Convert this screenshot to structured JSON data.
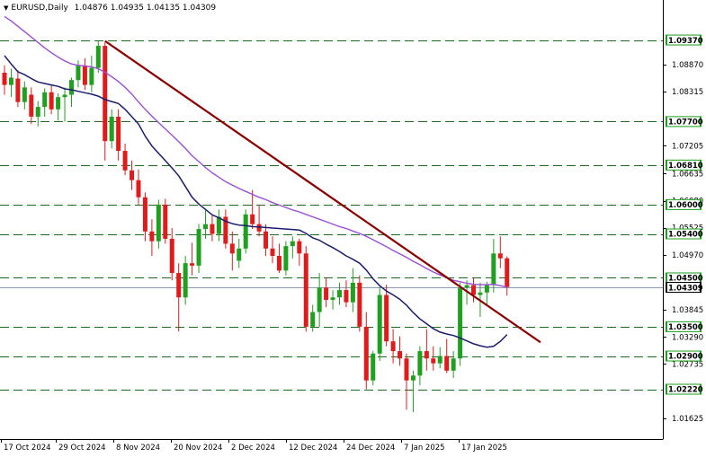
{
  "header": {
    "symbol": "EURUSD,Daily",
    "ohlc": "1.04876 1.04935 1.04135 1.04309"
  },
  "colors": {
    "bull": "#1fa01f",
    "bear": "#e01b1b",
    "ma_fast": "#1c1c6e",
    "ma_slow": "#9b4fd6",
    "trendline": "#8b0000",
    "level": "#1d6b1d",
    "level_label_bg": "#18a018",
    "price_line": "#8a9cb5",
    "current_label_bg": "#000000"
  },
  "chart_data": {
    "type": "candlestick",
    "ylim": [
      1.012,
      1.0995
    ],
    "y_ticks": [
      "1.08870",
      "1.08315",
      "1.07205",
      "1.06635",
      "1.06080",
      "1.05525",
      "1.04970",
      "1.03845",
      "1.03290",
      "1.02735",
      "1.01625"
    ],
    "x_ticks": [
      "17 Oct 2024",
      "29 Oct 2024",
      "8 Nov 2024",
      "20 Nov 2024",
      "2 Dec 2024",
      "12 Dec 2024",
      "24 Dec 2024",
      "7 Jan 2025",
      "17 Jan 2025"
    ],
    "levels": [
      "1.09370",
      "1.07700",
      "1.06810",
      "1.06000",
      "1.05400",
      "1.04500",
      "1.03500",
      "1.02900",
      "1.02220"
    ],
    "current_price": "1.04309",
    "candles": [
      {
        "o": 1.087,
        "h": 1.0885,
        "l": 1.0825,
        "c": 1.0845
      },
      {
        "o": 1.0845,
        "h": 1.0878,
        "l": 1.082,
        "c": 1.086
      },
      {
        "o": 1.0858,
        "h": 1.0875,
        "l": 1.08,
        "c": 1.081
      },
      {
        "o": 1.081,
        "h": 1.0852,
        "l": 1.0795,
        "c": 1.084
      },
      {
        "o": 1.0825,
        "h": 1.084,
        "l": 1.0765,
        "c": 1.078
      },
      {
        "o": 1.078,
        "h": 1.0812,
        "l": 1.076,
        "c": 1.08
      },
      {
        "o": 1.08,
        "h": 1.0838,
        "l": 1.078,
        "c": 1.083
      },
      {
        "o": 1.083,
        "h": 1.0845,
        "l": 1.0785,
        "c": 1.0795
      },
      {
        "o": 1.0795,
        "h": 1.0828,
        "l": 1.0772,
        "c": 1.082
      },
      {
        "o": 1.082,
        "h": 1.084,
        "l": 1.077,
        "c": 1.0825
      },
      {
        "o": 1.0825,
        "h": 1.086,
        "l": 1.08,
        "c": 1.0855
      },
      {
        "o": 1.0855,
        "h": 1.0895,
        "l": 1.084,
        "c": 1.0885
      },
      {
        "o": 1.0885,
        "h": 1.09,
        "l": 1.0835,
        "c": 1.0845
      },
      {
        "o": 1.0845,
        "h": 1.0905,
        "l": 1.083,
        "c": 1.088
      },
      {
        "o": 1.088,
        "h": 1.0935,
        "l": 1.087,
        "c": 1.0925
      },
      {
        "o": 1.0925,
        "h": 1.0932,
        "l": 1.069,
        "c": 1.073
      },
      {
        "o": 1.073,
        "h": 1.0795,
        "l": 1.0715,
        "c": 1.078
      },
      {
        "o": 1.078,
        "h": 1.0795,
        "l": 1.069,
        "c": 1.071
      },
      {
        "o": 1.071,
        "h": 1.0725,
        "l": 1.066,
        "c": 1.067
      },
      {
        "o": 1.067,
        "h": 1.069,
        "l": 1.063,
        "c": 1.065
      },
      {
        "o": 1.065,
        "h": 1.0672,
        "l": 1.06,
        "c": 1.0615
      },
      {
        "o": 1.0615,
        "h": 1.0625,
        "l": 1.0525,
        "c": 1.0545
      },
      {
        "o": 1.0545,
        "h": 1.057,
        "l": 1.0495,
        "c": 1.0525
      },
      {
        "o": 1.0525,
        "h": 1.061,
        "l": 1.051,
        "c": 1.06
      },
      {
        "o": 1.06,
        "h": 1.0612,
        "l": 1.052,
        "c": 1.053
      },
      {
        "o": 1.053,
        "h": 1.0552,
        "l": 1.0445,
        "c": 1.046
      },
      {
        "o": 1.046,
        "h": 1.048,
        "l": 1.034,
        "c": 1.041
      },
      {
        "o": 1.041,
        "h": 1.0495,
        "l": 1.0395,
        "c": 1.048
      },
      {
        "o": 1.048,
        "h": 1.0522,
        "l": 1.0455,
        "c": 1.0475
      },
      {
        "o": 1.0475,
        "h": 1.056,
        "l": 1.046,
        "c": 1.055
      },
      {
        "o": 1.055,
        "h": 1.0588,
        "l": 1.053,
        "c": 1.056
      },
      {
        "o": 1.056,
        "h": 1.0578,
        "l": 1.0525,
        "c": 1.054
      },
      {
        "o": 1.054,
        "h": 1.059,
        "l": 1.0525,
        "c": 1.0575
      },
      {
        "o": 1.0575,
        "h": 1.059,
        "l": 1.051,
        "c": 1.052
      },
      {
        "o": 1.052,
        "h": 1.0545,
        "l": 1.0465,
        "c": 1.05
      },
      {
        "o": 1.0485,
        "h": 1.053,
        "l": 1.047,
        "c": 1.051
      },
      {
        "o": 1.051,
        "h": 1.059,
        "l": 1.05,
        "c": 1.058
      },
      {
        "o": 1.058,
        "h": 1.063,
        "l": 1.055,
        "c": 1.056
      },
      {
        "o": 1.056,
        "h": 1.06,
        "l": 1.0535,
        "c": 1.0545
      },
      {
        "o": 1.0545,
        "h": 1.056,
        "l": 1.0495,
        "c": 1.051
      },
      {
        "o": 1.051,
        "h": 1.0535,
        "l": 1.048,
        "c": 1.0495
      },
      {
        "o": 1.0495,
        "h": 1.052,
        "l": 1.046,
        "c": 1.0465
      },
      {
        "o": 1.0465,
        "h": 1.0525,
        "l": 1.0455,
        "c": 1.0515
      },
      {
        "o": 1.0515,
        "h": 1.0535,
        "l": 1.049,
        "c": 1.0525
      },
      {
        "o": 1.0525,
        "h": 1.053,
        "l": 1.0475,
        "c": 1.05
      },
      {
        "o": 1.05,
        "h": 1.0515,
        "l": 1.034,
        "c": 1.035
      },
      {
        "o": 1.035,
        "h": 1.0395,
        "l": 1.034,
        "c": 1.038
      },
      {
        "o": 1.038,
        "h": 1.046,
        "l": 1.035,
        "c": 1.043
      },
      {
        "o": 1.043,
        "h": 1.045,
        "l": 1.039,
        "c": 1.0405
      },
      {
        "o": 1.0405,
        "h": 1.0425,
        "l": 1.0385,
        "c": 1.041
      },
      {
        "o": 1.041,
        "h": 1.044,
        "l": 1.0395,
        "c": 1.0425
      },
      {
        "o": 1.0425,
        "h": 1.0445,
        "l": 1.039,
        "c": 1.04
      },
      {
        "o": 1.04,
        "h": 1.047,
        "l": 1.038,
        "c": 1.044
      },
      {
        "o": 1.044,
        "h": 1.0455,
        "l": 1.034,
        "c": 1.035
      },
      {
        "o": 1.035,
        "h": 1.038,
        "l": 1.0222,
        "c": 1.024
      },
      {
        "o": 1.024,
        "h": 1.03,
        "l": 1.023,
        "c": 1.0295
      },
      {
        "o": 1.0295,
        "h": 1.0432,
        "l": 1.028,
        "c": 1.0415
      },
      {
        "o": 1.0415,
        "h": 1.0436,
        "l": 1.031,
        "c": 1.032
      },
      {
        "o": 1.032,
        "h": 1.0345,
        "l": 1.0275,
        "c": 1.03
      },
      {
        "o": 1.03,
        "h": 1.033,
        "l": 1.027,
        "c": 1.0285
      },
      {
        "o": 1.0285,
        "h": 1.0295,
        "l": 1.018,
        "c": 1.024
      },
      {
        "o": 1.024,
        "h": 1.026,
        "l": 1.0175,
        "c": 1.025
      },
      {
        "o": 1.025,
        "h": 1.031,
        "l": 1.023,
        "c": 1.03
      },
      {
        "o": 1.03,
        "h": 1.0345,
        "l": 1.026,
        "c": 1.0285
      },
      {
        "o": 1.0285,
        "h": 1.031,
        "l": 1.026,
        "c": 1.0275
      },
      {
        "o": 1.0275,
        "h": 1.0308,
        "l": 1.0265,
        "c": 1.029
      },
      {
        "o": 1.029,
        "h": 1.0325,
        "l": 1.0255,
        "c": 1.026
      },
      {
        "o": 1.026,
        "h": 1.03,
        "l": 1.0245,
        "c": 1.0285
      },
      {
        "o": 1.0285,
        "h": 1.044,
        "l": 1.027,
        "c": 1.043
      },
      {
        "o": 1.043,
        "h": 1.0445,
        "l": 1.0395,
        "c": 1.0435
      },
      {
        "o": 1.0435,
        "h": 1.045,
        "l": 1.04,
        "c": 1.0415
      },
      {
        "o": 1.0415,
        "h": 1.044,
        "l": 1.037,
        "c": 1.042
      },
      {
        "o": 1.042,
        "h": 1.0442,
        "l": 1.0395,
        "c": 1.0435
      },
      {
        "o": 1.0435,
        "h": 1.053,
        "l": 1.042,
        "c": 1.05
      },
      {
        "o": 1.05,
        "h": 1.0535,
        "l": 1.047,
        "c": 1.049
      },
      {
        "o": 1.049,
        "h": 1.0494,
        "l": 1.0414,
        "c": 1.0431
      }
    ],
    "ma_fast": [
      1.0905,
      1.0888,
      1.0872,
      1.0866,
      1.0858,
      1.0851,
      1.0848,
      1.0845,
      1.0842,
      1.0837,
      1.0835,
      1.0832,
      1.0829,
      1.0826,
      1.0822,
      1.0815,
      1.0811,
      1.0807,
      1.0795,
      1.078,
      1.0765,
      1.074,
      1.072,
      1.0705,
      1.069,
      1.0675,
      1.0659,
      1.0637,
      1.0615,
      1.0601,
      1.059,
      1.0579,
      1.0573,
      1.0566,
      1.0561,
      1.0558,
      1.0557,
      1.0555,
      1.0554,
      1.0553,
      1.0552,
      1.0551,
      1.055,
      1.0549,
      1.0548,
      1.0541,
      1.0532,
      1.0527,
      1.0519,
      1.0512,
      1.0504,
      1.0495,
      1.0488,
      1.048,
      1.0466,
      1.0448,
      1.0434,
      1.0423,
      1.0415,
      1.0406,
      1.0394,
      1.0379,
      1.0366,
      1.0356,
      1.0346,
      1.0339,
      1.0335,
      1.0332,
      1.0327,
      1.0321,
      1.0315,
      1.0311,
      1.0308,
      1.031,
      1.032,
      1.0334
    ],
    "ma_slow": [
      1.0985,
      1.0976,
      1.0965,
      1.0954,
      1.0943,
      1.0932,
      1.0921,
      1.0911,
      1.0902,
      1.0894,
      1.0888,
      1.0885,
      1.0884,
      1.0882,
      1.0878,
      1.0871,
      1.0862,
      1.0852,
      1.084,
      1.0826,
      1.081,
      1.0795,
      1.0781,
      1.0768,
      1.0755,
      1.0742,
      1.0729,
      1.0715,
      1.07,
      1.0688,
      1.0676,
      1.0665,
      1.0656,
      1.0647,
      1.064,
      1.0633,
      1.0627,
      1.0621,
      1.0615,
      1.061,
      1.0604,
      1.0599,
      1.0594,
      1.0589,
      1.0585,
      1.058,
      1.0575,
      1.057,
      1.0565,
      1.056,
      1.0555,
      1.0551,
      1.0546,
      1.0541,
      1.0535,
      1.0528,
      1.0521,
      1.0514,
      1.0506,
      1.0499,
      1.0492,
      1.0484,
      1.0477,
      1.0469,
      1.0462,
      1.0456,
      1.045,
      1.0445,
      1.0442,
      1.0439,
      1.0437,
      1.0436,
      1.0436,
      1.0437,
      1.0434,
      1.0431
    ],
    "trendline": {
      "from": {
        "bar": 15,
        "price": 1.0935
      },
      "to": {
        "bar": 80,
        "price": 1.0318
      }
    }
  }
}
